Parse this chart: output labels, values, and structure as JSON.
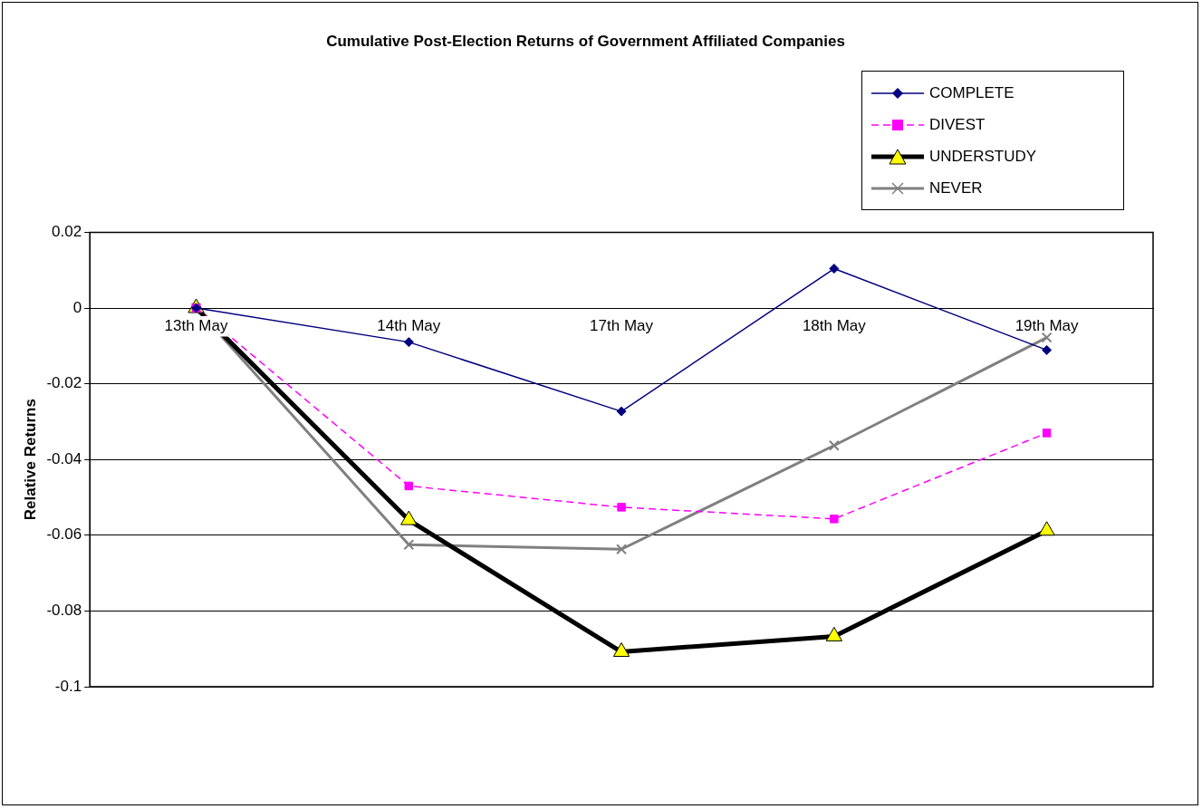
{
  "chart_data": {
    "type": "line",
    "title": "Cumulative Post-Election Returns of Government Affiliated Companies",
    "ylabel": "Relative Returns",
    "categories": [
      "13th May",
      "14th May",
      "17th May",
      "18th May",
      "19th May"
    ],
    "series": [
      {
        "name": "COMPLETE",
        "color": "#000080",
        "values": [
          0,
          -0.009,
          -0.0273,
          0.0104,
          -0.0111
        ],
        "marker": "diamond",
        "line_style": "solid"
      },
      {
        "name": "DIVEST",
        "color": "#ff00ff",
        "values": [
          0,
          -0.047,
          -0.0526,
          -0.0557,
          -0.033
        ],
        "marker": "square",
        "line_style": "dashed"
      },
      {
        "name": "UNDERSTUDY",
        "color": "#000000",
        "values": [
          0,
          -0.056,
          -0.0908,
          -0.0867,
          -0.0588
        ],
        "marker": "triangle",
        "line_style": "solid"
      },
      {
        "name": "NEVER",
        "color": "#808080",
        "values": [
          0,
          -0.0625,
          -0.0637,
          -0.0363,
          -0.0078
        ],
        "marker": "cross",
        "line_style": "solid"
      }
    ],
    "ylim": [
      -0.1,
      0.02
    ],
    "yticks": [
      -0.1,
      -0.08,
      -0.06,
      -0.04,
      -0.02,
      0,
      0.02
    ],
    "grid": "y",
    "legend": "top right"
  }
}
